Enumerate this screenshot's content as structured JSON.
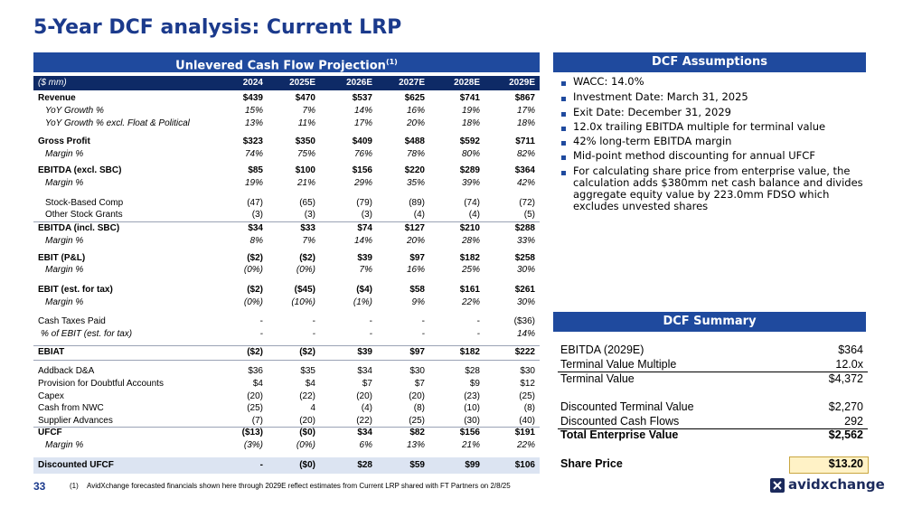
{
  "title": "5-Year DCF analysis: Current LRP",
  "projection": {
    "header": "Unlevered Cash Flow Projection",
    "header_note": "(1)",
    "unit_label": "($ mm)",
    "columns": [
      "2024",
      "2025E",
      "2026E",
      "2027E",
      "2028E",
      "2029E"
    ],
    "rows": [
      {
        "label": "Revenue",
        "values": [
          "$439",
          "$470",
          "$537",
          "$625",
          "$741",
          "$867"
        ]
      },
      {
        "label": "YoY Growth %",
        "values": [
          "15%",
          "7%",
          "14%",
          "16%",
          "19%",
          "17%"
        ]
      },
      {
        "label": "YoY Growth % excl. Float & Political",
        "values": [
          "13%",
          "11%",
          "17%",
          "20%",
          "18%",
          "18%"
        ]
      },
      {
        "label": "Gross Profit",
        "values": [
          "$323",
          "$350",
          "$409",
          "$488",
          "$592",
          "$711"
        ]
      },
      {
        "label": "Margin %",
        "values": [
          "74%",
          "75%",
          "76%",
          "78%",
          "80%",
          "82%"
        ]
      },
      {
        "label": "EBITDA (excl. SBC)",
        "values": [
          "$85",
          "$100",
          "$156",
          "$220",
          "$289",
          "$364"
        ]
      },
      {
        "label": "Margin %",
        "values": [
          "19%",
          "21%",
          "29%",
          "35%",
          "39%",
          "42%"
        ]
      },
      {
        "label": "Stock-Based Comp",
        "values": [
          "(47)",
          "(65)",
          "(79)",
          "(89)",
          "(74)",
          "(72)"
        ]
      },
      {
        "label": "Other Stock Grants",
        "values": [
          "(3)",
          "(3)",
          "(3)",
          "(4)",
          "(4)",
          "(5)"
        ]
      },
      {
        "label": "EBITDA (incl. SBC)",
        "values": [
          "$34",
          "$33",
          "$74",
          "$127",
          "$210",
          "$288"
        ]
      },
      {
        "label": "Margin %",
        "values": [
          "8%",
          "7%",
          "14%",
          "20%",
          "28%",
          "33%"
        ]
      },
      {
        "label": "EBIT (P&L)",
        "values": [
          "($2)",
          "($2)",
          "$39",
          "$97",
          "$182",
          "$258"
        ]
      },
      {
        "label": "Margin %",
        "values": [
          "(0%)",
          "(0%)",
          "7%",
          "16%",
          "25%",
          "30%"
        ]
      },
      {
        "label": "EBIT (est. for tax)",
        "values": [
          "($2)",
          "($45)",
          "($4)",
          "$58",
          "$161",
          "$261"
        ]
      },
      {
        "label": "Margin %",
        "values": [
          "(0%)",
          "(10%)",
          "(1%)",
          "9%",
          "22%",
          "30%"
        ]
      },
      {
        "label": "Cash Taxes Paid",
        "values": [
          "-",
          "-",
          "-",
          "-",
          "-",
          "($36)"
        ]
      },
      {
        "label": "% of EBIT (est. for tax)",
        "values": [
          "-",
          "-",
          "-",
          "-",
          "-",
          "14%"
        ]
      },
      {
        "label": "EBIAT",
        "values": [
          "($2)",
          "($2)",
          "$39",
          "$97",
          "$182",
          "$222"
        ]
      },
      {
        "label": "Addback D&A",
        "values": [
          "$36",
          "$35",
          "$34",
          "$30",
          "$28",
          "$30"
        ]
      },
      {
        "label": "Provision for Doubtful Accounts",
        "values": [
          "$4",
          "$4",
          "$7",
          "$7",
          "$9",
          "$12"
        ]
      },
      {
        "label": "Capex",
        "values": [
          "(20)",
          "(22)",
          "(20)",
          "(20)",
          "(23)",
          "(25)"
        ]
      },
      {
        "label": "Cash from NWC",
        "values": [
          "(25)",
          "4",
          "(4)",
          "(8)",
          "(10)",
          "(8)"
        ]
      },
      {
        "label": "Supplier Advances",
        "values": [
          "(7)",
          "(20)",
          "(22)",
          "(25)",
          "(30)",
          "(40)"
        ]
      },
      {
        "label": "UFCF",
        "values": [
          "($13)",
          "($0)",
          "$34",
          "$82",
          "$156",
          "$191"
        ]
      },
      {
        "label": "Margin %",
        "values": [
          "(3%)",
          "(0%)",
          "6%",
          "13%",
          "21%",
          "22%"
        ]
      },
      {
        "label": "Discounted UFCF",
        "values": [
          "-",
          "($0)",
          "$28",
          "$59",
          "$99",
          "$106"
        ]
      }
    ]
  },
  "assumptions": {
    "header": "DCF Assumptions",
    "items": [
      "WACC: 14.0%",
      "Investment Date: March 31, 2025",
      "Exit Date: December 31, 2029",
      "12.0x trailing EBITDA multiple for terminal value",
      "42% long-term EBITDA margin",
      "Mid-point method discounting for annual UFCF",
      "For calculating share price from enterprise value, the calculation adds $380mm net cash balance and divides aggregate equity value by 223.0mm FDSO which excludes unvested shares"
    ]
  },
  "summary": {
    "header": "DCF Summary",
    "rows": [
      {
        "label": "EBITDA (2029E)",
        "value": "$364"
      },
      {
        "label": "Terminal Value Multiple",
        "value": "12.0x"
      },
      {
        "label": "Terminal Value",
        "value": "$4,372"
      },
      {
        "label": "Discounted Terminal Value",
        "value": "$2,270"
      },
      {
        "label": "Discounted Cash Flows",
        "value": "292"
      },
      {
        "label": "Total Enterprise Value",
        "value": "$2,562"
      },
      {
        "label": "Share Price",
        "value": "$13.20"
      }
    ]
  },
  "footer": {
    "page_number": "33",
    "note_marker": "(1)",
    "note": "AvidXchange forecasted financials shown here through 2029E reflect estimates from Current LRP shared with FT Partners on 2/8/25",
    "logo": "avidxchange"
  }
}
